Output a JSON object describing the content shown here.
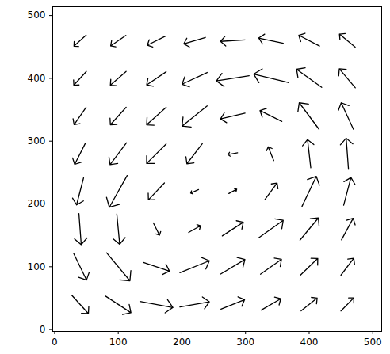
{
  "chart_data": {
    "type": "quiver",
    "color": "#000000",
    "xlim": [
      -3,
      514
    ],
    "ylim": [
      -3,
      514
    ],
    "xticks": [
      0,
      100,
      200,
      300,
      400,
      500
    ],
    "yticks": [
      0,
      100,
      200,
      300,
      400,
      500
    ],
    "x": [
      40,
      100,
      160,
      220,
      280,
      340,
      400,
      460
    ],
    "y": [
      40,
      100,
      160,
      220,
      280,
      340,
      400,
      460
    ],
    "u": [
      [
        0.57,
        0.87,
        1.13,
        1.01,
        0.81,
        0.67,
        0.55,
        0.44
      ],
      [
        0.44,
        0.8,
        0.89,
        1.01,
        0.83,
        0.72,
        0.59,
        0.44
      ],
      [
        0.08,
        0.1,
        0.21,
        0.41,
        0.72,
        0.84,
        0.63,
        0.4
      ],
      [
        -0.24,
        -0.61,
        -0.55,
        -0.27,
        0.27,
        0.42,
        0.49,
        0.25
      ],
      [
        -0.37,
        -0.56,
        -0.67,
        -0.53,
        -0.33,
        -0.19,
        -0.11,
        -0.08
      ],
      [
        -0.41,
        -0.54,
        -0.67,
        -0.86,
        -0.84,
        -0.75,
        -0.68,
        -0.42
      ],
      [
        -0.43,
        -0.54,
        -0.67,
        -0.86,
        -1.12,
        -1.18,
        -0.86,
        -0.55
      ],
      [
        -0.42,
        -0.52,
        -0.62,
        -0.74,
        -0.84,
        -0.84,
        -0.71,
        -0.54
      ]
    ],
    "v": [
      [
        -0.63,
        -0.57,
        -0.21,
        0.18,
        0.33,
        0.39,
        0.44,
        0.45
      ],
      [
        -0.91,
        -0.96,
        -0.3,
        0.41,
        0.5,
        0.51,
        0.57,
        0.58
      ],
      [
        -1.07,
        -1.04,
        -0.42,
        0.23,
        0.47,
        0.6,
        0.76,
        0.74
      ],
      [
        -0.93,
        -1.09,
        -0.58,
        -0.12,
        0.15,
        0.57,
        1.03,
        0.95
      ],
      [
        -0.73,
        -0.75,
        -0.67,
        -0.69,
        -0.06,
        0.47,
        0.97,
        1.07
      ],
      [
        -0.59,
        -0.6,
        -0.6,
        -0.69,
        -0.2,
        0.37,
        0.91,
        0.91
      ],
      [
        -0.47,
        -0.47,
        -0.45,
        -0.4,
        -0.18,
        0.29,
        0.62,
        0.65
      ],
      [
        -0.38,
        -0.36,
        -0.31,
        -0.22,
        -0.05,
        0.18,
        0.37,
        0.45
      ]
    ]
  }
}
